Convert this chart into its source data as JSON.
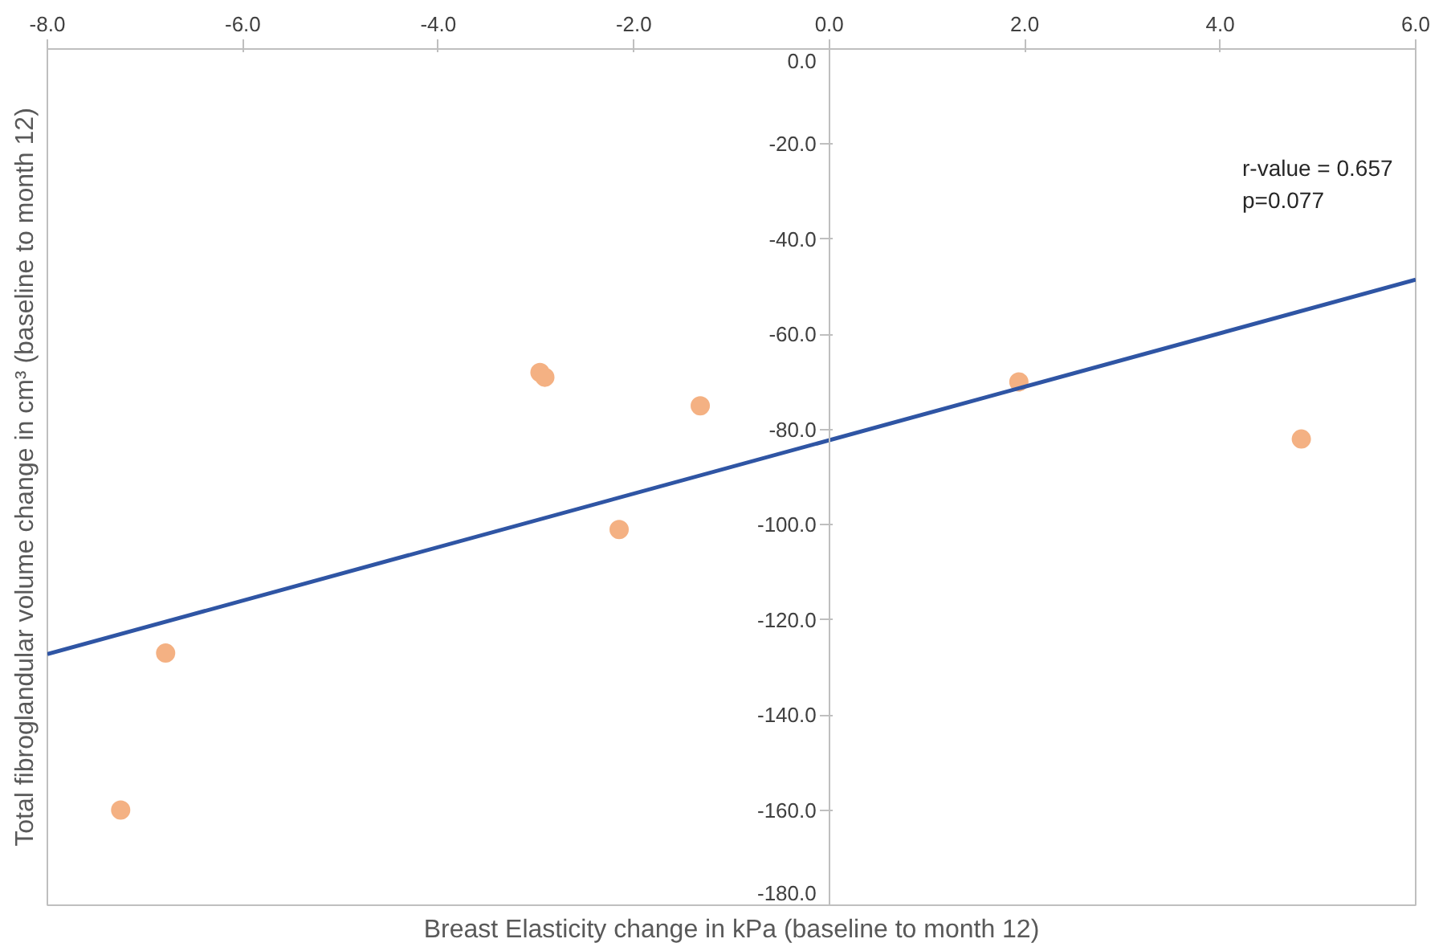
{
  "chart_data": {
    "type": "scatter",
    "xlabel": "Breast Elasticity change in kPa (baseline to month 12)",
    "ylabel": "Total fibroglandular volume change in cm³ (baseline to month 12)",
    "annotations": [
      "r-value = 0.657",
      "p=0.077"
    ],
    "series": [
      {
        "color": "#f4b183",
        "marker": "circle",
        "x": [
          -7.25,
          -6.79,
          -2.96,
          -2.91,
          -2.15,
          -1.32,
          1.94,
          4.83
        ],
        "values": [
          -160,
          -127,
          -68,
          -69,
          -101,
          -75,
          -70,
          -82
        ]
      },
      {
        "type": "line",
        "color": "#2f55a4",
        "marker": "none",
        "x": [
          -8.0,
          6.0
        ],
        "values": [
          -127.2,
          -48.5
        ]
      }
    ],
    "xlim": [
      -8.0,
      6.0
    ],
    "xticks": [
      {
        "value": -8,
        "label": "-8.0"
      },
      {
        "value": -6,
        "label": "-6.0"
      },
      {
        "value": -4,
        "label": "-4.0"
      },
      {
        "value": -2,
        "label": "-2.0"
      },
      {
        "value": 0,
        "label": "0.0"
      },
      {
        "value": 2,
        "label": "2.0"
      },
      {
        "value": 4,
        "label": "4.0"
      },
      {
        "value": 6,
        "label": "6.0"
      }
    ],
    "ylim": [
      -180.0,
      0.0
    ],
    "yticks": [
      {
        "value": -180,
        "label": "-180.0"
      },
      {
        "value": -160,
        "label": "-160.0"
      },
      {
        "value": -140,
        "label": "-140.0"
      },
      {
        "value": -120,
        "label": "-120.0"
      },
      {
        "value": -100,
        "label": "-100.0"
      },
      {
        "value": -80,
        "label": "-80.0"
      },
      {
        "value": -60,
        "label": "-60.0"
      },
      {
        "value": -40,
        "label": "-40.0"
      },
      {
        "value": -20,
        "label": "-20.0"
      },
      {
        "value": 0,
        "label": "0.0"
      }
    ],
    "grid": false
  }
}
